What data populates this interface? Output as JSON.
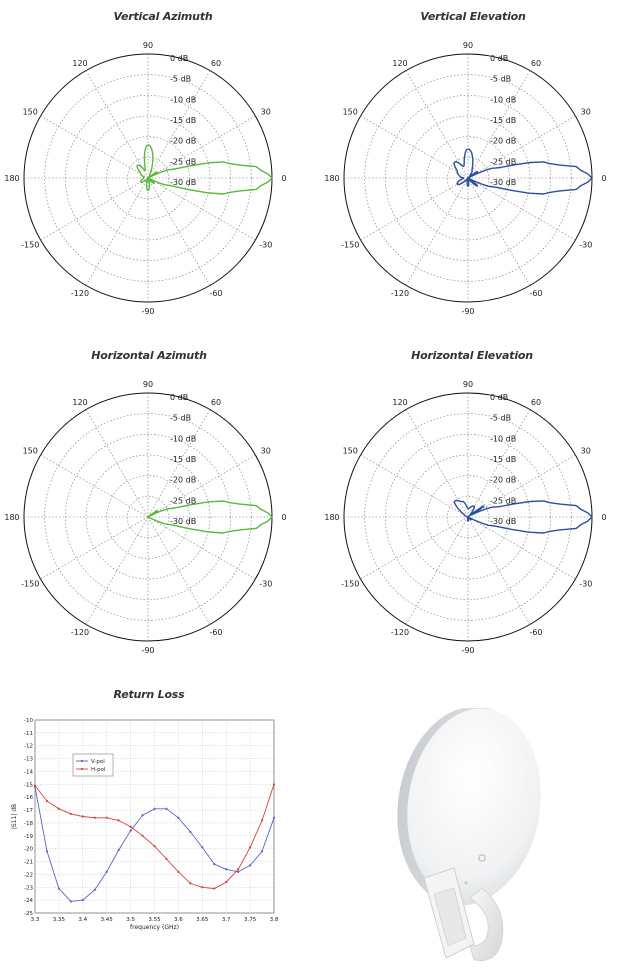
{
  "chart_data": [
    {
      "type": "polar",
      "title": "Vertical Azimuth",
      "angle_ticks": [
        "90",
        "60",
        "30",
        "0",
        "-30",
        "-60",
        "-90",
        "-120",
        "-150",
        "180",
        "150",
        "120"
      ],
      "rings_db": [
        "0 dB",
        "-5 dB",
        "-10 dB",
        "-15 dB",
        "-20 dB",
        "-25 dB",
        "-30 dB"
      ],
      "color": "#5ab83c",
      "series": [
        {
          "angles": [
            -180,
            -150,
            -120,
            -90,
            -60,
            -40,
            -30,
            -20,
            -10,
            -5,
            0,
            5,
            10,
            20,
            30,
            35,
            40,
            60,
            90,
            110,
            130,
            150,
            170,
            180
          ],
          "gain_db": [
            -29,
            -28,
            -31,
            -27,
            -31,
            -28,
            -31,
            -25,
            -10,
            -3,
            0,
            -3,
            -10,
            -24,
            -31,
            -27,
            -32,
            -29,
            -22,
            -28,
            -26,
            -28,
            -29,
            -29
          ]
        }
      ]
    },
    {
      "type": "polar",
      "title": "Vertical Elevation",
      "angle_ticks": [
        "90",
        "60",
        "30",
        "0",
        "-30",
        "-60",
        "-90",
        "-120",
        "-150",
        "180",
        "150",
        "120"
      ],
      "rings_db": [
        "0 dB",
        "-5 dB",
        "-10 dB",
        "-15 dB",
        "-20 dB",
        "-25 dB",
        "-30 dB"
      ],
      "color": "#2d4e9e",
      "series": [
        {
          "angles": [
            -180,
            -150,
            -120,
            -90,
            -60,
            -40,
            -30,
            -20,
            -10,
            -5,
            0,
            5,
            10,
            20,
            30,
            35,
            40,
            60,
            90,
            110,
            130,
            150,
            170,
            180
          ],
          "gain_db": [
            -29,
            -27,
            -31,
            -28,
            -32,
            -27,
            -31,
            -24,
            -10,
            -3,
            0,
            -3,
            -10,
            -23,
            -30,
            -27,
            -31,
            -28,
            -23,
            -27,
            -25,
            -27,
            -28,
            -29
          ]
        }
      ]
    },
    {
      "type": "polar",
      "title": "Horizontal Azimuth",
      "angle_ticks": [
        "90",
        "60",
        "30",
        "0",
        "-30",
        "-60",
        "-90",
        "-120",
        "-150",
        "180",
        "150",
        "120"
      ],
      "rings_db": [
        "0 dB",
        "-5 dB",
        "-10 dB",
        "-15 dB",
        "-20 dB",
        "-25 dB",
        "-30 dB"
      ],
      "color": "#5ab83c",
      "series": [
        {
          "angles": [
            -180,
            -150,
            -120,
            -90,
            -60,
            -40,
            -30,
            -20,
            -10,
            -5,
            0,
            5,
            10,
            20,
            30,
            35,
            40,
            60,
            90,
            110,
            130,
            150,
            170,
            180
          ],
          "gain_db": [
            -31,
            -31,
            -32,
            -31,
            -32,
            -30,
            -31,
            -25,
            -10,
            -3,
            0,
            -3,
            -10,
            -24,
            -30,
            -27,
            -31,
            -30,
            -31,
            -31,
            -31,
            -31,
            -31,
            -31
          ]
        }
      ]
    },
    {
      "type": "polar",
      "title": "Horizontal Elevation",
      "angle_ticks": [
        "90",
        "60",
        "30",
        "0",
        "-30",
        "-60",
        "-90",
        "-120",
        "-150",
        "180",
        "150",
        "120"
      ],
      "rings_db": [
        "0 dB",
        "-5 dB",
        "-10 dB",
        "-15 dB",
        "-20 dB",
        "-25 dB",
        "-30 dB"
      ],
      "color": "#2d4e9e",
      "series": [
        {
          "angles": [
            -180,
            -150,
            -120,
            -90,
            -60,
            -40,
            -30,
            -20,
            -10,
            -5,
            0,
            5,
            10,
            20,
            30,
            35,
            40,
            60,
            90,
            110,
            130,
            150,
            170,
            180
          ],
          "gain_db": [
            -31,
            -30,
            -31,
            -29,
            -31,
            -29,
            -31,
            -24,
            -10,
            -3,
            0,
            -3,
            -10,
            -23,
            -29,
            -25,
            -30,
            -27,
            -28,
            -26,
            -25,
            -29,
            -30,
            -31
          ]
        }
      ]
    },
    {
      "type": "line",
      "title": "Return Loss",
      "xlabel": "frequency (GHz)",
      "ylabel": "|S11| dB",
      "xlim": [
        3.3,
        3.8
      ],
      "ylim": [
        -25,
        -10
      ],
      "x_ticks": [
        "3.3",
        "3.35",
        "3.4",
        "3.45",
        "3.5",
        "3.55",
        "3.6",
        "3.65",
        "3.7",
        "3.75",
        "3.8"
      ],
      "y_ticks": [
        "-10",
        "-11",
        "-12",
        "-13",
        "-14",
        "-15",
        "-16",
        "-17",
        "-18",
        "-19",
        "-20",
        "-21",
        "-22",
        "-23",
        "-24",
        "-25"
      ],
      "legend": "top-left",
      "x": [
        3.3,
        3.325,
        3.35,
        3.375,
        3.4,
        3.425,
        3.45,
        3.475,
        3.5,
        3.525,
        3.55,
        3.575,
        3.6,
        3.625,
        3.65,
        3.675,
        3.7,
        3.725,
        3.75,
        3.775,
        3.8
      ],
      "series": [
        {
          "name": "V-pol",
          "color": "#5b63c9",
          "values": [
            -15.2,
            -20.2,
            -23.1,
            -24.1,
            -24.0,
            -23.2,
            -21.8,
            -20.1,
            -18.6,
            -17.4,
            -16.9,
            -16.9,
            -17.6,
            -18.7,
            -19.9,
            -21.2,
            -21.6,
            -21.8,
            -21.3,
            -20.2,
            -17.6
          ]
        },
        {
          "name": "H-pol",
          "color": "#d9413c",
          "values": [
            -15.1,
            -16.3,
            -16.9,
            -17.3,
            -17.5,
            -17.6,
            -17.6,
            -17.8,
            -18.3,
            -19.0,
            -19.8,
            -20.8,
            -21.8,
            -22.7,
            -23.0,
            -23.1,
            -22.6,
            -21.6,
            -19.9,
            -17.8,
            -15.0
          ]
        }
      ]
    }
  ]
}
